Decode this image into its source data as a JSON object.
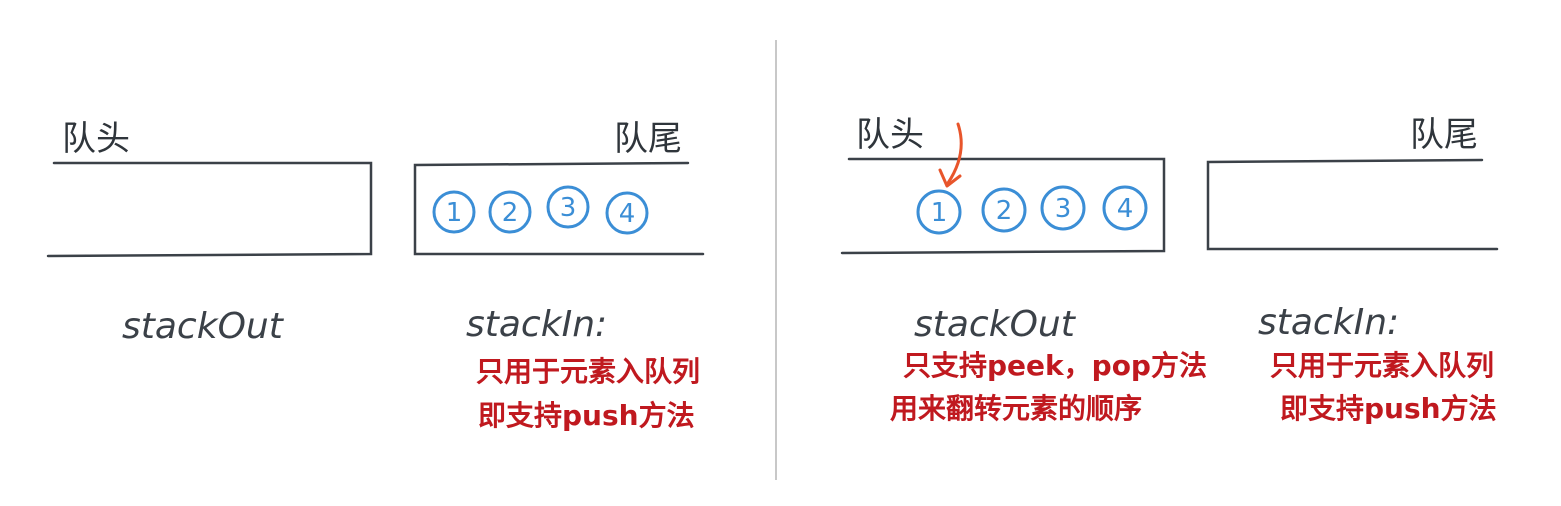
{
  "colors": {
    "ink": "#3b4148",
    "box_stroke": "#3b4148",
    "circle": "#3b8ed6",
    "note": "#c0191f",
    "arrow": "#e8552b",
    "divider": "#c8c8c8"
  },
  "left_panel": {
    "queue_head": "队头",
    "queue_tail": "队尾",
    "stack_out": {
      "label": "stackOut",
      "items": []
    },
    "stack_in": {
      "label": "stackIn:",
      "items": [
        "1",
        "2",
        "3",
        "4"
      ],
      "notes": [
        "只用于元素入队列",
        "即支持push方法"
      ]
    }
  },
  "right_panel": {
    "queue_head": "队头",
    "queue_tail": "队尾",
    "stack_out": {
      "label": "stackOut",
      "items": [
        "1",
        "2",
        "3",
        "4"
      ],
      "notes": [
        "只支持peek，pop方法",
        "用来翻转元素的顺序"
      ]
    },
    "stack_in": {
      "label": "stackIn:",
      "items": [],
      "notes": [
        "只用于元素入队列",
        "即支持push方法"
      ]
    }
  }
}
